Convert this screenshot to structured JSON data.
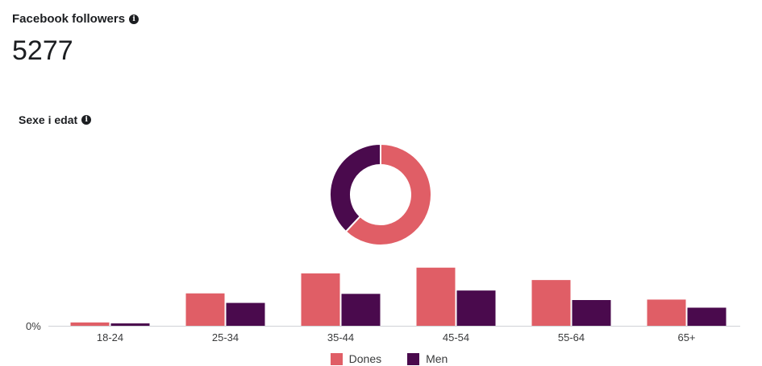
{
  "header": {
    "title": "Facebook followers",
    "value": "5277"
  },
  "section": {
    "title": "Sexe i edat"
  },
  "icons": {
    "info": "info-icon"
  },
  "colors": {
    "dones": "#e05e66",
    "men": "#4a0a4d"
  },
  "chart_data": [
    {
      "type": "pie",
      "variant": "donut",
      "labels": [
        "Dones",
        "Men"
      ],
      "values": [
        62,
        38
      ]
    },
    {
      "type": "bar",
      "categories": [
        "18-24",
        "25-34",
        "35-44",
        "45-54",
        "55-64",
        "65+"
      ],
      "series": [
        {
          "name": "Dones",
          "values": [
            0.7,
            6.8,
            11.0,
            12.2,
            9.6,
            5.5
          ]
        },
        {
          "name": "Men",
          "values": [
            0.5,
            4.8,
            6.7,
            7.4,
            5.4,
            3.8
          ]
        }
      ],
      "ytick_label": "0%",
      "ylim": [
        0,
        13
      ],
      "legend": "bottom-center"
    }
  ]
}
